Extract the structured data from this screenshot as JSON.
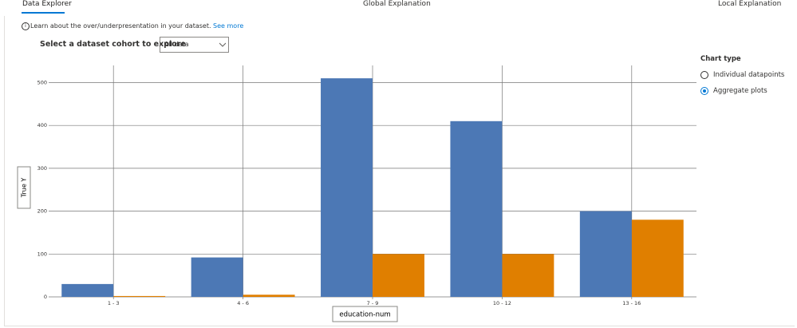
{
  "tabs": [
    "Data Explorer",
    "Global Explanation",
    "Local Explanation"
  ],
  "info": {
    "text": "Learn about the over/underpresentation in your dataset.",
    "link": "See more"
  },
  "cohort": {
    "label": "Select a dataset cohort to explore",
    "selected": "All data"
  },
  "chart_type": {
    "title": "Chart type",
    "options": [
      "Individual datapoints",
      "Aggregate plots"
    ],
    "selected": 1
  },
  "chart_data": {
    "type": "bar",
    "x_label": "education-num",
    "y_label": "True Y",
    "categories": [
      "1 - 3",
      "4 - 6",
      "7 - 9",
      "10 - 12",
      "13 - 16"
    ],
    "series": [
      {
        "color": "#4c78b5",
        "values": [
          30,
          92,
          510,
          410,
          200
        ]
      },
      {
        "color": "#e07f00",
        "values": [
          2,
          5,
          100,
          100,
          180
        ]
      }
    ],
    "ylim": [
      0,
      540
    ],
    "yticks": [
      0,
      100,
      200,
      300,
      400,
      500
    ],
    "grid": true
  }
}
